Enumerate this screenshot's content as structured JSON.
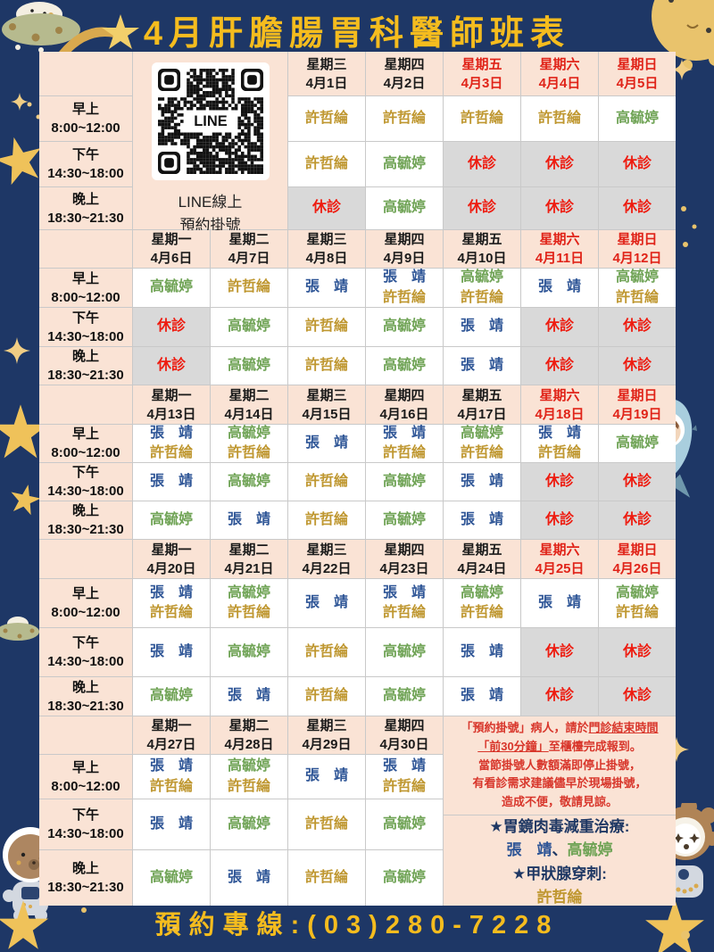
{
  "title": "4月肝膽腸胃科醫師班表",
  "hotline": "預約專線:(03)280-7228",
  "qr": {
    "label": "LINE",
    "caption_line1": "LINE線上",
    "caption_line2": "預約掛號"
  },
  "time_slots": [
    {
      "period": "早上",
      "hours": "8:00~12:00"
    },
    {
      "period": "下午",
      "hours": "14:30~18:00"
    },
    {
      "period": "晚上",
      "hours": "18:30~21:30"
    }
  ],
  "closed_label": "休診",
  "doctors": {
    "xu": {
      "name": "許哲綸",
      "color": "#bf9730"
    },
    "gao": {
      "name": "高毓婷",
      "color": "#6fa355"
    },
    "zhang": {
      "name": "張　靖",
      "color": "#2e5596"
    }
  },
  "weeks": [
    {
      "days": [
        {
          "weekday": "星期三",
          "date": "4月1日",
          "red": false
        },
        {
          "weekday": "星期四",
          "date": "4月2日",
          "red": false
        },
        {
          "weekday": "星期五",
          "date": "4月3日",
          "red": true
        },
        {
          "weekday": "星期六",
          "date": "4月4日",
          "red": true
        },
        {
          "weekday": "星期日",
          "date": "4月5日",
          "red": true
        }
      ],
      "rows": [
        [
          [
            "xu"
          ],
          [
            "xu"
          ],
          [
            "xu"
          ],
          [
            "xu"
          ],
          [
            "gao"
          ]
        ],
        [
          [
            "xu"
          ],
          [
            "gao"
          ],
          "closed",
          "closed",
          "closed"
        ],
        [
          "closed",
          [
            "gao"
          ],
          "closed",
          "closed",
          "closed"
        ]
      ]
    },
    {
      "days": [
        {
          "weekday": "星期一",
          "date": "4月6日",
          "red": false
        },
        {
          "weekday": "星期二",
          "date": "4月7日",
          "red": false
        },
        {
          "weekday": "星期三",
          "date": "4月8日",
          "red": false
        },
        {
          "weekday": "星期四",
          "date": "4月9日",
          "red": false
        },
        {
          "weekday": "星期五",
          "date": "4月10日",
          "red": false
        },
        {
          "weekday": "星期六",
          "date": "4月11日",
          "red": true
        },
        {
          "weekday": "星期日",
          "date": "4月12日",
          "red": true
        }
      ],
      "rows": [
        [
          [
            "gao"
          ],
          [
            "xu"
          ],
          [
            "zhang"
          ],
          [
            "zhang",
            "xu"
          ],
          [
            "gao",
            "xu"
          ],
          [
            "zhang"
          ],
          [
            "gao",
            "xu"
          ]
        ],
        [
          "closed",
          [
            "gao"
          ],
          [
            "xu"
          ],
          [
            "gao"
          ],
          [
            "zhang"
          ],
          "closed",
          "closed"
        ],
        [
          "closed",
          [
            "gao"
          ],
          [
            "xu"
          ],
          [
            "gao"
          ],
          [
            "zhang"
          ],
          "closed",
          "closed"
        ]
      ]
    },
    {
      "days": [
        {
          "weekday": "星期一",
          "date": "4月13日",
          "red": false
        },
        {
          "weekday": "星期二",
          "date": "4月14日",
          "red": false
        },
        {
          "weekday": "星期三",
          "date": "4月15日",
          "red": false
        },
        {
          "weekday": "星期四",
          "date": "4月16日",
          "red": false
        },
        {
          "weekday": "星期五",
          "date": "4月17日",
          "red": false
        },
        {
          "weekday": "星期六",
          "date": "4月18日",
          "red": true
        },
        {
          "weekday": "星期日",
          "date": "4月19日",
          "red": true
        }
      ],
      "rows": [
        [
          [
            "zhang",
            "xu"
          ],
          [
            "gao",
            "xu"
          ],
          [
            "zhang"
          ],
          [
            "zhang",
            "xu"
          ],
          [
            "gao",
            "xu"
          ],
          [
            "zhang",
            "xu"
          ],
          [
            "gao"
          ]
        ],
        [
          [
            "zhang"
          ],
          [
            "gao"
          ],
          [
            "xu"
          ],
          [
            "gao"
          ],
          [
            "zhang"
          ],
          "closed",
          "closed"
        ],
        [
          [
            "gao"
          ],
          [
            "zhang"
          ],
          [
            "xu"
          ],
          [
            "gao"
          ],
          [
            "zhang"
          ],
          "closed",
          "closed"
        ]
      ]
    },
    {
      "days": [
        {
          "weekday": "星期一",
          "date": "4月20日",
          "red": false
        },
        {
          "weekday": "星期二",
          "date": "4月21日",
          "red": false
        },
        {
          "weekday": "星期三",
          "date": "4月22日",
          "red": false
        },
        {
          "weekday": "星期四",
          "date": "4月23日",
          "red": false
        },
        {
          "weekday": "星期五",
          "date": "4月24日",
          "red": false
        },
        {
          "weekday": "星期六",
          "date": "4月25日",
          "red": true
        },
        {
          "weekday": "星期日",
          "date": "4月26日",
          "red": true
        }
      ],
      "rows": [
        [
          [
            "zhang",
            "xu"
          ],
          [
            "gao",
            "xu"
          ],
          [
            "zhang"
          ],
          [
            "zhang",
            "xu"
          ],
          [
            "gao",
            "xu"
          ],
          [
            "zhang"
          ],
          [
            "gao",
            "xu"
          ]
        ],
        [
          [
            "zhang"
          ],
          [
            "gao"
          ],
          [
            "xu"
          ],
          [
            "gao"
          ],
          [
            "zhang"
          ],
          "closed",
          "closed"
        ],
        [
          [
            "gao"
          ],
          [
            "zhang"
          ],
          [
            "xu"
          ],
          [
            "gao"
          ],
          [
            "zhang"
          ],
          "closed",
          "closed"
        ]
      ]
    },
    {
      "days": [
        {
          "weekday": "星期一",
          "date": "4月27日",
          "red": false
        },
        {
          "weekday": "星期二",
          "date": "4月28日",
          "red": false
        },
        {
          "weekday": "星期三",
          "date": "4月29日",
          "red": false
        },
        {
          "weekday": "星期四",
          "date": "4月30日",
          "red": false
        }
      ],
      "rows": [
        [
          [
            "zhang",
            "xu"
          ],
          [
            "gao",
            "xu"
          ],
          [
            "zhang"
          ],
          [
            "zhang",
            "xu"
          ]
        ],
        [
          [
            "zhang"
          ],
          [
            "gao"
          ],
          [
            "xu"
          ],
          [
            "gao"
          ]
        ],
        [
          [
            "gao"
          ],
          [
            "zhang"
          ],
          [
            "xu"
          ],
          [
            "gao"
          ]
        ]
      ]
    }
  ],
  "booking_note": {
    "lines": [
      [
        {
          "t": "「預約掛號」病人，請於"
        },
        {
          "t": "門診結束時間",
          "u": true
        }
      ],
      [
        {
          "t": "「前30分鐘」",
          "u": true
        },
        {
          "t": "至櫃檯完成報到。"
        }
      ],
      [
        {
          "t": "當節掛號人數額滿即停止掛號，"
        }
      ],
      [
        {
          "t": "有看診需求建議儘早於現場掛號，"
        }
      ],
      [
        {
          "t": "造成不便，敬請見諒。"
        }
      ]
    ]
  },
  "special_notes": {
    "lines": [
      [
        {
          "t": "★胃鏡肉毒減重治療:",
          "c": "dark"
        }
      ],
      [
        {
          "t": "張　靖",
          "c": "zhang"
        },
        {
          "t": "、",
          "c": "dark"
        },
        {
          "t": "高毓婷",
          "c": "gao"
        }
      ],
      [
        {
          "t": "★甲狀腺穿刺:",
          "c": "dark"
        }
      ],
      [
        {
          "t": "許哲綸",
          "c": "xu"
        }
      ]
    ]
  },
  "colors": {
    "background": "#1e3766",
    "peach": "#fae3d5",
    "closed_bg": "#d9d9d9",
    "closed_text": "#ee1c10",
    "weekend_red": "#e02318",
    "title_gold": "#f5bc1e",
    "note_red": "#d8362b",
    "dark": "#1f3864",
    "star_gold": "#efc25a"
  }
}
